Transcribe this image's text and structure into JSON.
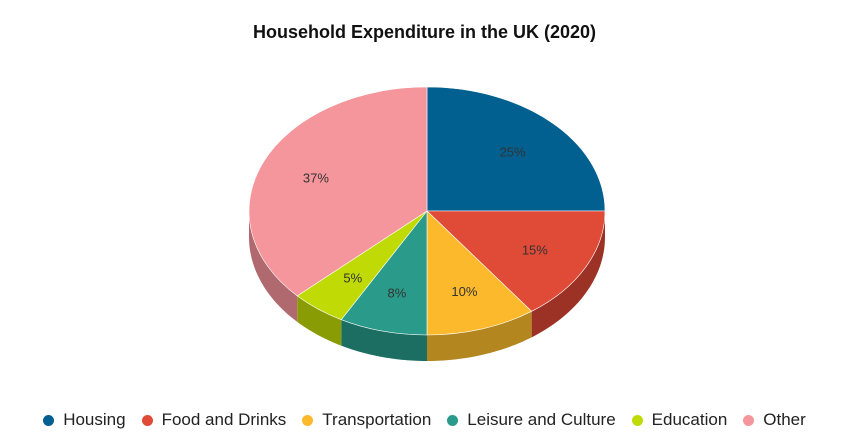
{
  "chart_data": {
    "type": "pie",
    "title": "Household Expenditure in the UK (2020)",
    "slices": [
      {
        "name": "Housing",
        "value": 25,
        "label": "25%",
        "color": "#01608f",
        "side_color": "#014a6e"
      },
      {
        "name": "Food and Drinks",
        "value": 15,
        "label": "15%",
        "color": "#e04b37",
        "side_color": "#9c3226"
      },
      {
        "name": "Transportation",
        "value": 10,
        "label": "10%",
        "color": "#fbb92b",
        "side_color": "#b4861f"
      },
      {
        "name": "Leisure and Culture",
        "value": 8,
        "label": "8%",
        "color": "#2a9b8a",
        "side_color": "#1c6e62"
      },
      {
        "name": "Education",
        "value": 5,
        "label": "5%",
        "color": "#c0da06",
        "side_color": "#8a9c04"
      },
      {
        "name": "Other",
        "value": 37,
        "label": "37%",
        "color": "#f4969c",
        "side_color": "#b06a6f"
      }
    ],
    "legend_position": "bottom",
    "style": "3d-tilted"
  }
}
